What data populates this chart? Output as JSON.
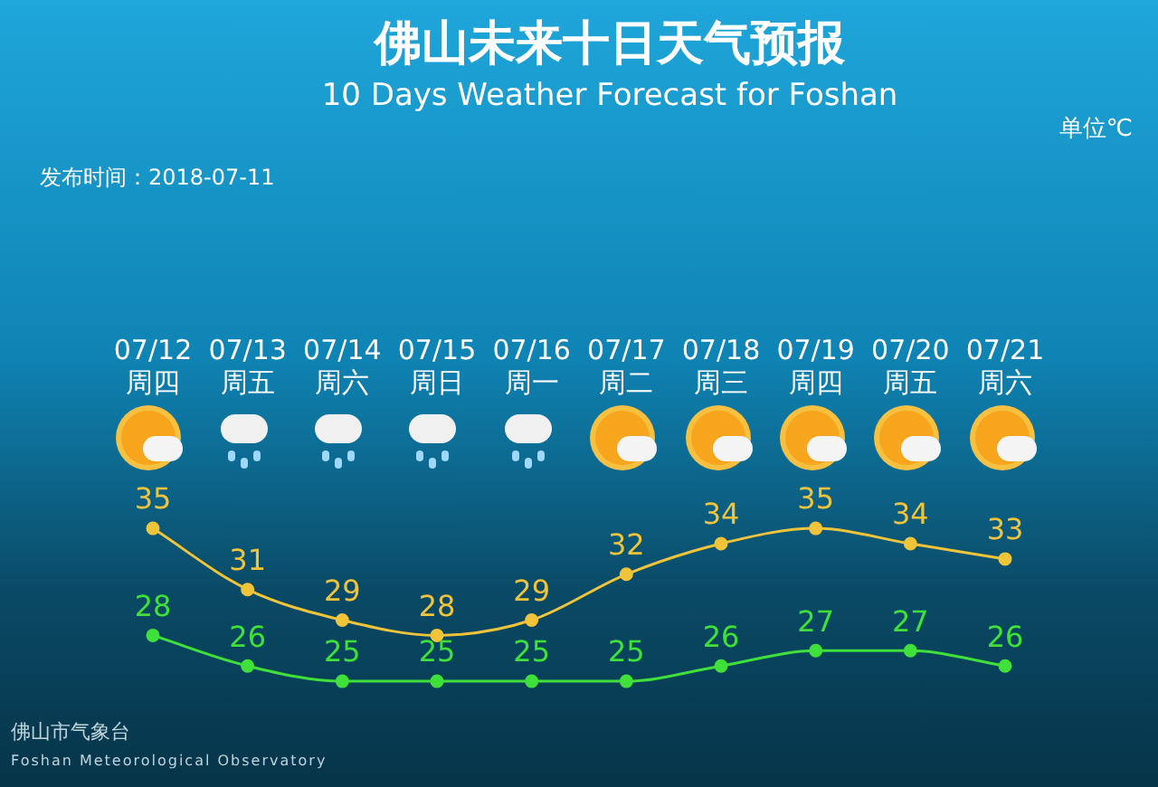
{
  "chart_data": {
    "type": "line",
    "title": "佛山未来十日天气预报",
    "subtitle": "10 Days Weather Forecast for Foshan",
    "categories": [
      "07/12\n周四",
      "07/13\n周五",
      "07/14\n周六",
      "07/15\n周日",
      "07/16\n周一",
      "07/17\n周二",
      "07/18\n周三",
      "07/19\n周四",
      "07/20\n周五",
      "07/21\n周六"
    ],
    "series": [
      {
        "color": "#f0c43a",
        "values": [
          35,
          31,
          29,
          28,
          29,
          32,
          34,
          35,
          34,
          33
        ]
      },
      {
        "color": "#3fe03a",
        "values": [
          28,
          26,
          25,
          25,
          25,
          25,
          26,
          27,
          27,
          26
        ]
      }
    ],
    "data_labels": true,
    "grid": false,
    "legend": false,
    "marker": "circle",
    "line_style": "solid",
    "tick_labels": "x",
    "annotations": [
      "单位℃",
      "发布时间：2018-07-11",
      "佛山市气象台",
      "Foshan Meteorological Observatory"
    ]
  }
}
